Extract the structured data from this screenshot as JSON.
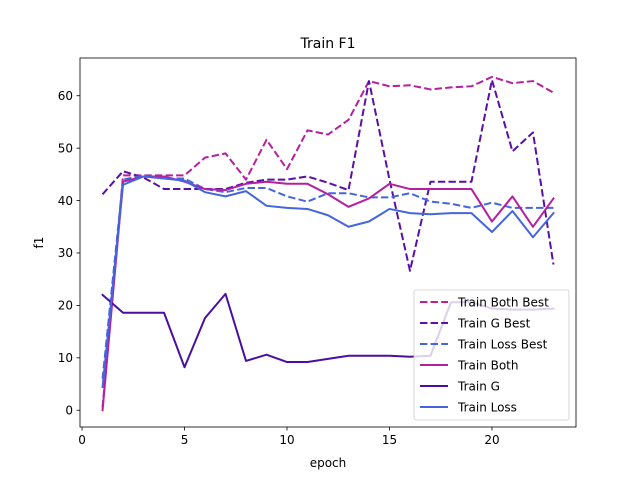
{
  "chart_data": {
    "type": "line",
    "title": "Train F1",
    "xlabel": "epoch",
    "ylabel": "f1",
    "xlim": [
      -0.1,
      24.1
    ],
    "ylim": [
      -3.2,
      67.2
    ],
    "xticks": [
      0,
      5,
      10,
      15,
      20
    ],
    "yticks": [
      0,
      10,
      20,
      30,
      40,
      50,
      60
    ],
    "grid": false,
    "legend_position": "lower-right",
    "x": [
      1,
      2,
      3,
      4,
      5,
      6,
      7,
      8,
      9,
      10,
      11,
      12,
      13,
      14,
      15,
      16,
      17,
      18,
      19,
      20,
      21,
      22,
      23
    ],
    "series": [
      {
        "name": "Train Both Best",
        "color": "#b5209f",
        "style": "dashed",
        "values": [
          0.5,
          44.8,
          44.8,
          44.8,
          44.8,
          48.2,
          49.0,
          44.0,
          51.6,
          46.0,
          53.4,
          52.6,
          55.4,
          62.8,
          61.8,
          62.0,
          61.2,
          61.6,
          61.8,
          63.6,
          62.4,
          62.8,
          60.6
        ]
      },
      {
        "name": "Train G Best",
        "color": "#5a0fa8",
        "style": "dashed",
        "values": [
          41.2,
          45.6,
          44.4,
          42.2,
          42.2,
          42.2,
          42.2,
          43.4,
          44.0,
          44.0,
          44.6,
          43.4,
          42.0,
          62.8,
          44.0,
          26.6,
          43.6,
          43.6,
          43.6,
          63.0,
          49.4,
          53.0,
          27.8
        ]
      },
      {
        "name": "Train Loss Best",
        "color": "#4466dd",
        "style": "dashed",
        "values": [
          6.0,
          44.0,
          44.8,
          44.2,
          44.2,
          42.2,
          41.6,
          42.4,
          42.4,
          40.8,
          39.8,
          41.4,
          41.4,
          40.6,
          40.6,
          41.4,
          39.8,
          39.4,
          38.6,
          39.6,
          38.6,
          38.6,
          38.6
        ]
      },
      {
        "name": "Train Both",
        "color": "#b5209f",
        "style": "solid",
        "values": [
          0.0,
          43.6,
          44.6,
          44.6,
          43.6,
          42.2,
          42.0,
          43.2,
          43.6,
          43.2,
          43.2,
          41.2,
          38.8,
          40.4,
          43.2,
          42.2,
          42.2,
          42.2,
          42.2,
          36.0,
          40.8,
          35.0,
          40.4
        ]
      },
      {
        "name": "Train G",
        "color": "#4a0fa0",
        "style": "solid",
        "values": [
          22.0,
          18.6,
          18.6,
          18.6,
          8.2,
          17.6,
          22.2,
          9.4,
          10.6,
          9.2,
          9.2,
          9.8,
          10.4,
          10.4,
          10.4,
          10.2,
          10.4,
          20.6,
          20.6,
          19.4,
          19.2,
          19.2,
          19.4
        ]
      },
      {
        "name": "Train Loss",
        "color": "#4466dd",
        "style": "solid",
        "values": [
          4.4,
          43.0,
          44.6,
          44.2,
          43.8,
          41.6,
          40.8,
          41.8,
          39.0,
          38.6,
          38.4,
          37.2,
          35.0,
          36.0,
          38.4,
          37.6,
          37.4,
          37.6,
          37.6,
          34.0,
          38.0,
          33.0,
          37.6
        ]
      }
    ]
  }
}
